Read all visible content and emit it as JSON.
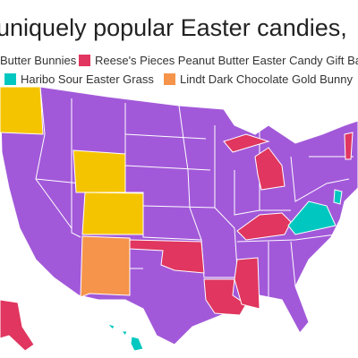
{
  "header": {
    "title": "uniquely popular Easter candies,"
  },
  "legend": {
    "items": [
      {
        "label": "Butter Bunnies",
        "color": "#a259d9"
      },
      {
        "label": "Reese's Pieces Peanut Butter Easter Candy Gift Bag",
        "color": "#e0365f"
      },
      {
        "label": "Haribo Sour Easter Grass",
        "color": "#00c8c0"
      },
      {
        "label": "Lindt Dark Chocolate Gold Bunny",
        "color": "#f5944a"
      }
    ]
  }
}
